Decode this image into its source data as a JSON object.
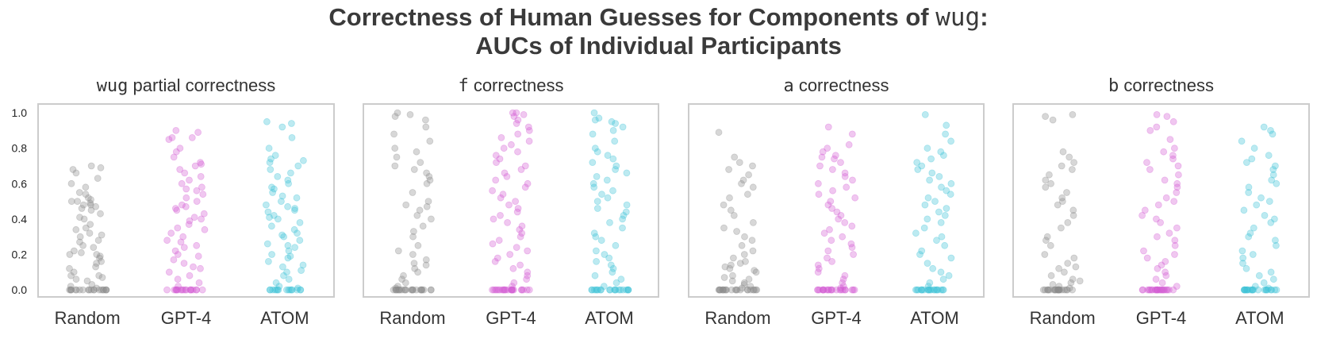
{
  "figure": {
    "title_line1_prefix": "Correctness of Human Guesses for Components of ",
    "title_line1_code": "wug",
    "title_line1_suffix": ":",
    "title_line2": "AUCs of Individual Participants"
  },
  "colors": {
    "Random": "#8c8c8c",
    "GPT-4": "#d35fd3",
    "ATOM": "#3ec3d8"
  },
  "chart_data": [
    {
      "type": "scatter",
      "title_code": "wug",
      "title_rest": " partial correctness",
      "categories": [
        "Random",
        "GPT-4",
        "ATOM"
      ],
      "ylim": [
        -0.04,
        1.05
      ],
      "yticks": [
        0.0,
        0.2,
        0.4,
        0.6,
        0.8,
        1.0
      ],
      "grid": false,
      "series": [
        {
          "name": "Random",
          "values": [
            0,
            0,
            0,
            0,
            0,
            0,
            0,
            0,
            0,
            0,
            0,
            0,
            0,
            0,
            0,
            0,
            0,
            0,
            0,
            0,
            0.01,
            0.02,
            0.03,
            0.05,
            0.06,
            0.07,
            0.08,
            0.08,
            0.1,
            0.12,
            0.13,
            0.15,
            0.16,
            0.18,
            0.19,
            0.2,
            0.2,
            0.21,
            0.22,
            0.24,
            0.25,
            0.27,
            0.28,
            0.3,
            0.31,
            0.32,
            0.34,
            0.35,
            0.37,
            0.4,
            0.41,
            0.43,
            0.45,
            0.46,
            0.47,
            0.48,
            0.48,
            0.49,
            0.5,
            0.5,
            0.51,
            0.52,
            0.54,
            0.55,
            0.58,
            0.6,
            0.63,
            0.66,
            0.68,
            0.69,
            0.7
          ]
        },
        {
          "name": "GPT-4",
          "values": [
            0,
            0,
            0,
            0,
            0,
            0,
            0,
            0,
            0,
            0,
            0,
            0,
            0,
            0,
            0,
            0,
            0,
            0,
            0.02,
            0.04,
            0.06,
            0.08,
            0.1,
            0.12,
            0.13,
            0.15,
            0.17,
            0.19,
            0.2,
            0.22,
            0.24,
            0.25,
            0.27,
            0.28,
            0.3,
            0.32,
            0.34,
            0.35,
            0.37,
            0.39,
            0.4,
            0.41,
            0.43,
            0.45,
            0.46,
            0.47,
            0.48,
            0.5,
            0.52,
            0.54,
            0.56,
            0.57,
            0.58,
            0.6,
            0.62,
            0.64,
            0.66,
            0.68,
            0.7,
            0.71,
            0.72,
            0.75,
            0.78,
            0.8,
            0.85,
            0.86,
            0.86,
            0.89,
            0.9
          ]
        },
        {
          "name": "ATOM",
          "values": [
            0,
            0,
            0,
            0,
            0,
            0,
            0,
            0,
            0,
            0,
            0,
            0,
            0,
            0,
            0,
            0.01,
            0.02,
            0.04,
            0.06,
            0.08,
            0.1,
            0.11,
            0.13,
            0.14,
            0.16,
            0.18,
            0.19,
            0.2,
            0.22,
            0.24,
            0.25,
            0.26,
            0.28,
            0.3,
            0.31,
            0.32,
            0.34,
            0.36,
            0.38,
            0.4,
            0.41,
            0.42,
            0.44,
            0.45,
            0.46,
            0.47,
            0.48,
            0.5,
            0.52,
            0.53,
            0.55,
            0.57,
            0.58,
            0.6,
            0.62,
            0.64,
            0.66,
            0.68,
            0.7,
            0.72,
            0.73,
            0.74,
            0.76,
            0.8,
            0.86,
            0.92,
            0.94,
            0.95
          ]
        }
      ]
    },
    {
      "type": "scatter",
      "title_code": "f",
      "title_rest": " correctness",
      "categories": [
        "Random",
        "GPT-4",
        "ATOM"
      ],
      "ylim": [
        -0.04,
        1.05
      ],
      "grid": false,
      "series": [
        {
          "name": "Random",
          "values": [
            0,
            0,
            0,
            0,
            0,
            0,
            0,
            0,
            0,
            0,
            0,
            0,
            0,
            0,
            0,
            0,
            0,
            0,
            0,
            0,
            0,
            0,
            0,
            0.01,
            0.02,
            0.04,
            0.06,
            0.08,
            0.1,
            0.12,
            0.14,
            0.15,
            0.17,
            0.2,
            0.22,
            0.25,
            0.3,
            0.33,
            0.36,
            0.4,
            0.42,
            0.45,
            0.47,
            0.48,
            0.5,
            0.55,
            0.6,
            0.62,
            0.64,
            0.66,
            0.68,
            0.7,
            0.72,
            0.75,
            0.78,
            0.8,
            0.84,
            0.88,
            0.92,
            0.96,
            0.98,
            0.99,
            1.0
          ]
        },
        {
          "name": "GPT-4",
          "values": [
            0,
            0,
            0,
            0,
            0,
            0,
            0,
            0,
            0,
            0,
            0,
            0,
            0,
            0,
            0,
            0,
            0,
            0,
            0,
            0,
            0,
            0,
            0,
            0.02,
            0.04,
            0.06,
            0.08,
            0.1,
            0.12,
            0.14,
            0.16,
            0.18,
            0.2,
            0.22,
            0.24,
            0.26,
            0.28,
            0.3,
            0.32,
            0.34,
            0.36,
            0.38,
            0.4,
            0.42,
            0.44,
            0.46,
            0.48,
            0.5,
            0.52,
            0.54,
            0.56,
            0.58,
            0.6,
            0.62,
            0.64,
            0.66,
            0.68,
            0.7,
            0.72,
            0.74,
            0.76,
            0.78,
            0.8,
            0.82,
            0.84,
            0.86,
            0.88,
            0.9,
            0.92,
            0.94,
            0.96,
            0.98,
            0.99,
            1.0,
            1.0
          ]
        },
        {
          "name": "ATOM",
          "values": [
            0,
            0,
            0,
            0,
            0,
            0,
            0,
            0,
            0,
            0,
            0,
            0,
            0,
            0,
            0,
            0,
            0,
            0,
            0,
            0,
            0.02,
            0.04,
            0.06,
            0.08,
            0.1,
            0.12,
            0.14,
            0.16,
            0.18,
            0.2,
            0.22,
            0.25,
            0.28,
            0.3,
            0.32,
            0.35,
            0.38,
            0.4,
            0.42,
            0.44,
            0.46,
            0.48,
            0.5,
            0.52,
            0.54,
            0.56,
            0.58,
            0.6,
            0.62,
            0.64,
            0.66,
            0.68,
            0.7,
            0.72,
            0.74,
            0.76,
            0.78,
            0.8,
            0.84,
            0.88,
            0.9,
            0.92,
            0.94,
            0.95,
            0.96,
            0.97,
            1.0
          ]
        }
      ]
    },
    {
      "type": "scatter",
      "title_code": "a",
      "title_rest": " correctness",
      "categories": [
        "Random",
        "GPT-4",
        "ATOM"
      ],
      "ylim": [
        -0.04,
        1.05
      ],
      "grid": false,
      "series": [
        {
          "name": "Random",
          "values": [
            0,
            0,
            0,
            0,
            0,
            0,
            0,
            0,
            0,
            0,
            0,
            0,
            0,
            0,
            0,
            0,
            0,
            0,
            0,
            0,
            0,
            0,
            0.01,
            0.02,
            0.03,
            0.04,
            0.05,
            0.06,
            0.07,
            0.08,
            0.1,
            0.11,
            0.12,
            0.13,
            0.14,
            0.15,
            0.16,
            0.18,
            0.2,
            0.22,
            0.25,
            0.28,
            0.3,
            0.33,
            0.35,
            0.38,
            0.42,
            0.45,
            0.48,
            0.52,
            0.54,
            0.58,
            0.6,
            0.62,
            0.65,
            0.68,
            0.7,
            0.72,
            0.75,
            0.89
          ]
        },
        {
          "name": "GPT-4",
          "values": [
            0,
            0,
            0,
            0,
            0,
            0,
            0,
            0,
            0,
            0,
            0,
            0,
            0,
            0,
            0,
            0,
            0,
            0,
            0,
            0,
            0,
            0,
            0.01,
            0.02,
            0.04,
            0.06,
            0.08,
            0.1,
            0.12,
            0.14,
            0.16,
            0.18,
            0.2,
            0.22,
            0.24,
            0.26,
            0.28,
            0.3,
            0.32,
            0.34,
            0.36,
            0.38,
            0.4,
            0.42,
            0.44,
            0.46,
            0.48,
            0.5,
            0.52,
            0.54,
            0.56,
            0.58,
            0.6,
            0.62,
            0.64,
            0.66,
            0.68,
            0.7,
            0.72,
            0.74,
            0.75,
            0.76,
            0.78,
            0.8,
            0.82,
            0.88,
            0.92
          ]
        },
        {
          "name": "ATOM",
          "values": [
            0,
            0,
            0,
            0,
            0,
            0,
            0,
            0,
            0,
            0,
            0,
            0,
            0,
            0,
            0,
            0,
            0,
            0,
            0,
            0,
            0.02,
            0.04,
            0.06,
            0.08,
            0.1,
            0.12,
            0.15,
            0.18,
            0.2,
            0.22,
            0.25,
            0.28,
            0.3,
            0.32,
            0.35,
            0.38,
            0.4,
            0.42,
            0.44,
            0.46,
            0.48,
            0.5,
            0.52,
            0.54,
            0.56,
            0.58,
            0.6,
            0.62,
            0.64,
            0.66,
            0.68,
            0.7,
            0.72,
            0.74,
            0.76,
            0.78,
            0.8,
            0.84,
            0.88,
            0.93,
            0.99
          ]
        }
      ]
    },
    {
      "type": "scatter",
      "title_code": "b",
      "title_rest": " correctness",
      "categories": [
        "Random",
        "GPT-4",
        "ATOM"
      ],
      "ylim": [
        -0.04,
        1.05
      ],
      "grid": false,
      "series": [
        {
          "name": "Random",
          "values": [
            0,
            0,
            0,
            0,
            0,
            0,
            0,
            0,
            0,
            0,
            0,
            0,
            0,
            0,
            0,
            0,
            0,
            0,
            0,
            0,
            0,
            0,
            0.01,
            0.02,
            0.03,
            0.04,
            0.05,
            0.06,
            0.08,
            0.1,
            0.12,
            0.13,
            0.15,
            0.18,
            0.2,
            0.25,
            0.28,
            0.3,
            0.35,
            0.38,
            0.42,
            0.45,
            0.48,
            0.5,
            0.52,
            0.55,
            0.58,
            0.6,
            0.62,
            0.65,
            0.68,
            0.7,
            0.72,
            0.75,
            0.78,
            0.96,
            0.98,
            0.99
          ]
        },
        {
          "name": "GPT-4",
          "values": [
            0,
            0,
            0,
            0,
            0,
            0,
            0,
            0,
            0,
            0,
            0,
            0,
            0,
            0,
            0,
            0,
            0,
            0,
            0,
            0,
            0,
            0,
            0,
            0,
            0.02,
            0.04,
            0.06,
            0.08,
            0.1,
            0.12,
            0.14,
            0.16,
            0.18,
            0.2,
            0.22,
            0.25,
            0.28,
            0.3,
            0.32,
            0.35,
            0.38,
            0.4,
            0.42,
            0.45,
            0.48,
            0.5,
            0.52,
            0.55,
            0.58,
            0.6,
            0.62,
            0.65,
            0.68,
            0.7,
            0.72,
            0.74,
            0.76,
            0.78,
            0.8,
            0.85,
            0.9,
            0.92,
            0.95,
            0.98,
            0.99
          ]
        },
        {
          "name": "ATOM",
          "values": [
            0,
            0,
            0,
            0,
            0,
            0,
            0,
            0,
            0,
            0,
            0,
            0,
            0,
            0,
            0,
            0,
            0,
            0,
            0,
            0,
            0,
            0,
            0.01,
            0.02,
            0.04,
            0.06,
            0.08,
            0.1,
            0.12,
            0.15,
            0.18,
            0.2,
            0.22,
            0.25,
            0.28,
            0.3,
            0.32,
            0.35,
            0.38,
            0.4,
            0.42,
            0.45,
            0.48,
            0.5,
            0.52,
            0.55,
            0.58,
            0.6,
            0.62,
            0.65,
            0.68,
            0.7,
            0.72,
            0.74,
            0.76,
            0.8,
            0.84,
            0.88,
            0.9,
            0.92
          ]
        }
      ]
    }
  ]
}
